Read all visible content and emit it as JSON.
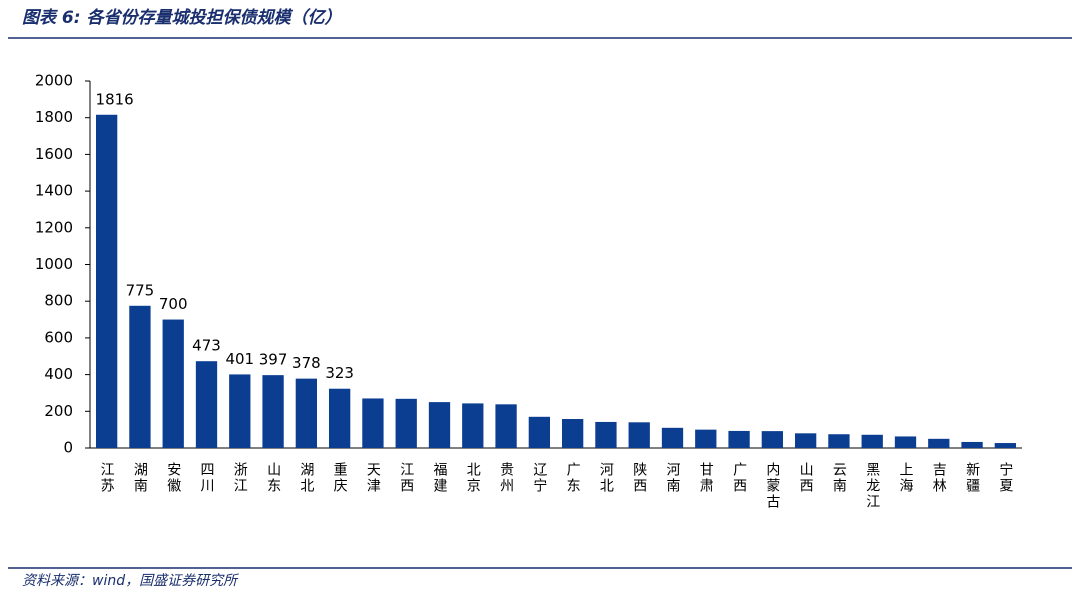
{
  "chart_data": {
    "type": "bar",
    "title": "图表 6: 各省份存量城投担保债规模（亿）",
    "source": "资料来源：wind，国盛证券研究所",
    "categories": [
      "江苏",
      "湖南",
      "安徽",
      "四川",
      "浙江",
      "山东",
      "湖北",
      "重庆",
      "天津",
      "江西",
      "福建",
      "北京",
      "贵州",
      "辽宁",
      "广东",
      "河北",
      "陕西",
      "河南",
      "甘肃",
      "广西",
      "内蒙古",
      "山西",
      "云南",
      "黑龙江",
      "上海",
      "吉林",
      "新疆",
      "宁夏"
    ],
    "values": [
      1816,
      775,
      700,
      473,
      401,
      397,
      378,
      323,
      270,
      268,
      250,
      243,
      238,
      170,
      158,
      142,
      140,
      110,
      100,
      93,
      92,
      80,
      75,
      72,
      63,
      50,
      33,
      27
    ],
    "value_labels": [
      "1816",
      "775",
      "700",
      "473",
      "401",
      "397",
      "378",
      "323",
      null,
      null,
      null,
      null,
      null,
      null,
      null,
      null,
      null,
      null,
      null,
      null,
      null,
      null,
      null,
      null,
      null,
      null,
      null,
      null
    ],
    "color": "#0b3d91",
    "ylim": [
      0,
      2000
    ],
    "yticks": [
      0,
      200,
      400,
      600,
      800,
      1000,
      1200,
      1400,
      1600,
      1800,
      2000
    ]
  }
}
